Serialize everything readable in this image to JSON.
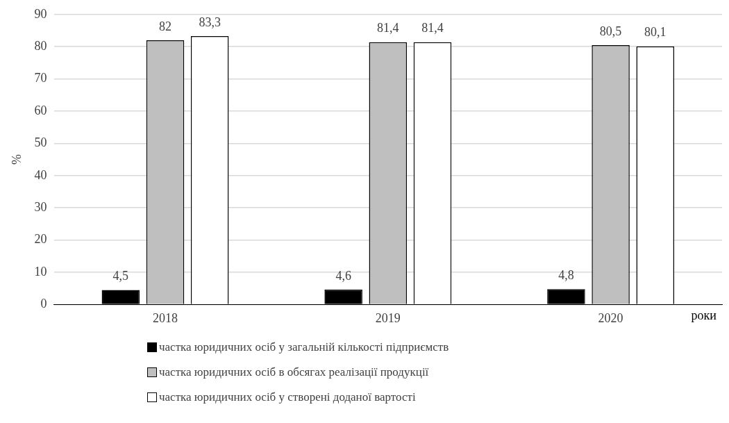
{
  "chart_data": {
    "type": "bar",
    "xlabel": "роки",
    "ylabel": "%",
    "categories": [
      "2018",
      "2019",
      "2020"
    ],
    "series": [
      {
        "name": "частка юридичних осіб у загальній кількості підприємств",
        "color": "#000000",
        "values": [
          4.5,
          4.6,
          4.8
        ],
        "value_labels": [
          "4,5",
          "4,6",
          "4,8"
        ]
      },
      {
        "name": "частка юридичних осіб в обсягах реалізації продукції",
        "color": "#bfbfbf",
        "values": [
          82,
          81.4,
          80.5
        ],
        "value_labels": [
          "82",
          "81,4",
          "80,5"
        ]
      },
      {
        "name": "частка юридичних осіб у створені доданої вартості",
        "color": "#ffffff",
        "values": [
          83.3,
          81.4,
          80.1
        ],
        "value_labels": [
          "83,3",
          "81,4",
          "80,1"
        ]
      }
    ],
    "ylim": [
      0,
      90
    ],
    "yticks": [
      0,
      10,
      20,
      30,
      40,
      50,
      60,
      70,
      80,
      90
    ],
    "grid": "y",
    "legend": "bottom"
  }
}
